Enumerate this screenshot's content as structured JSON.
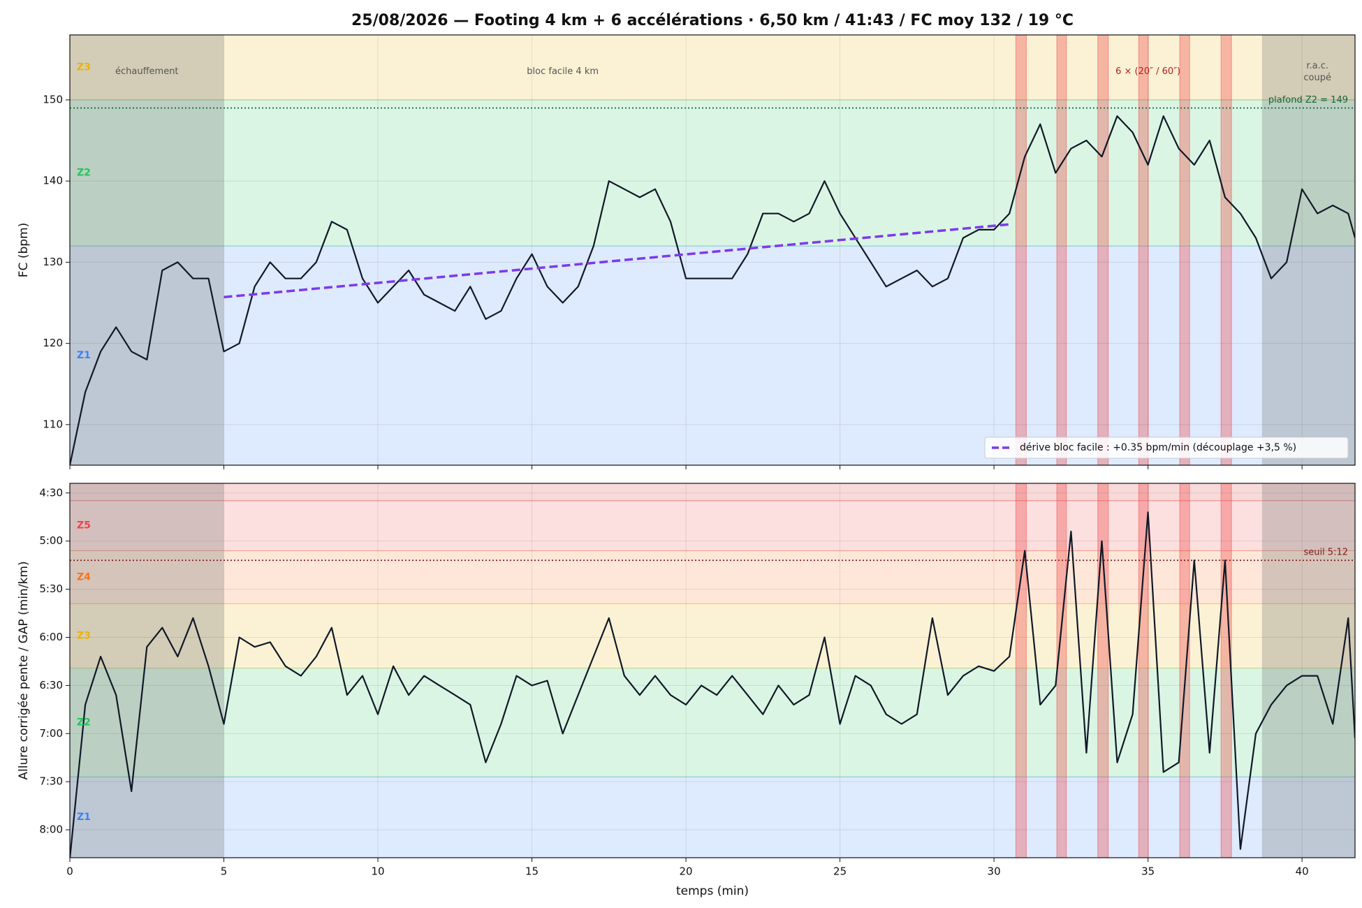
{
  "title": "25/08/2026 — Footing 4 km + 6 accélérations · 6,50 km / 41:43 / FC moy 132 / 19 °C",
  "chart_data": [
    {
      "type": "line",
      "ylabel": "FC (bpm)",
      "xlim": [
        0,
        41.72
      ],
      "xticks": [
        0,
        5,
        10,
        15,
        20,
        25,
        30,
        35,
        40
      ],
      "ylim": [
        105,
        158
      ],
      "yticks": [
        110,
        120,
        130,
        140,
        150
      ],
      "grid": true,
      "zones": [
        {
          "label": "Z1",
          "from": 105,
          "to": 132,
          "color": "#3b82f6"
        },
        {
          "label": "Z2",
          "from": 132,
          "to": 150,
          "color": "#22c55e"
        },
        {
          "label": "Z3",
          "from": 150,
          "to": 158,
          "color": "#eab308"
        }
      ],
      "shaded": [
        [
          0,
          5
        ],
        [
          38.7,
          41.72
        ]
      ],
      "intervals": [
        [
          30.71,
          31.05
        ],
        [
          32.04,
          32.35
        ],
        [
          33.37,
          33.71
        ],
        [
          34.7,
          35.01
        ],
        [
          36.03,
          36.35
        ],
        [
          37.37,
          37.71
        ]
      ],
      "annotations": [
        {
          "text": [
            "échauffement"
          ],
          "x": 2.5,
          "y": 153.5,
          "color": "#555555"
        },
        {
          "text": [
            "bloc facile 4 km"
          ],
          "x": 16,
          "y": 153.5,
          "color": "#555555"
        },
        {
          "text": [
            "6 × (20″ / 60″)"
          ],
          "x": 35,
          "y": 153.5,
          "color": "#b91c1c"
        },
        {
          "text": [
            "r.a.c.",
            "coupé"
          ],
          "x": 40.5,
          "y": 153.5,
          "color": "#555555"
        }
      ],
      "reference": {
        "value": 149,
        "label": "plafond Z2 = 149",
        "color": "#166534"
      },
      "trend": {
        "name": "dérive bloc facile : +0.35 bpm/min (découplage +3,5 %)",
        "x": [
          5,
          30.6
        ],
        "values": [
          125.7,
          134.7
        ],
        "color": "#7c3aed"
      },
      "legend": "lower right",
      "color": "#111827",
      "x": [
        0,
        0.5,
        1,
        1.5,
        2,
        2.5,
        3,
        3.5,
        4,
        4.5,
        5,
        5.5,
        6,
        6.5,
        7,
        7.5,
        8,
        8.5,
        9,
        9.5,
        10,
        10.5,
        11,
        11.5,
        12,
        12.5,
        13,
        13.5,
        14,
        14.5,
        15,
        15.5,
        16,
        16.5,
        17,
        17.5,
        18,
        18.5,
        19,
        19.5,
        20,
        20.5,
        21,
        21.5,
        22,
        22.5,
        23,
        23.5,
        24,
        24.5,
        25,
        25.5,
        26,
        26.5,
        27,
        27.5,
        28,
        28.5,
        29,
        29.5,
        30,
        30.5,
        31,
        31.5,
        32,
        32.5,
        33,
        33.5,
        34,
        34.5,
        35,
        35.5,
        36,
        36.5,
        37,
        37.5,
        38,
        38.5,
        39,
        39.5,
        40,
        40.5,
        41,
        41.5,
        41.72
      ],
      "values": [
        105,
        114,
        119,
        122,
        119,
        118,
        129,
        130,
        128,
        128,
        119,
        120,
        127,
        130,
        128,
        128,
        130,
        135,
        134,
        128,
        125,
        127,
        129,
        126,
        125,
        124,
        127,
        123,
        124,
        128,
        131,
        127,
        125,
        127,
        132,
        140,
        139,
        138,
        139,
        135,
        128,
        128,
        128,
        128,
        131,
        136,
        136,
        135,
        136,
        140,
        136,
        133,
        130,
        127,
        128,
        129,
        127,
        128,
        133,
        134,
        134,
        136,
        143,
        147,
        141,
        144,
        145,
        143,
        148,
        146,
        142,
        148,
        144,
        142,
        145,
        138,
        136,
        133,
        128,
        130,
        139,
        136,
        137,
        136,
        133
      ]
    },
    {
      "type": "line",
      "ylabel": "Allure corrigée pente / GAP (min/km)",
      "xlabel": "temps (min)",
      "xlim": [
        0,
        41.72
      ],
      "xticks": [
        0,
        5,
        10,
        15,
        20,
        25,
        30,
        35,
        40
      ],
      "ylim": [
        4.4,
        8.29
      ],
      "y_inverted": true,
      "yticks": [
        {
          "value": 4.5,
          "label": "4:30"
        },
        {
          "value": 5,
          "label": "5:00"
        },
        {
          "value": 5.5,
          "label": "5:30"
        },
        {
          "value": 6,
          "label": "6:00"
        },
        {
          "value": 6.5,
          "label": "6:30"
        },
        {
          "value": 7,
          "label": "7:00"
        },
        {
          "value": 7.5,
          "label": "7:30"
        },
        {
          "value": 8,
          "label": "8:00"
        }
      ],
      "grid": true,
      "zones": [
        {
          "label": "Z1",
          "from": 7.45,
          "to": 8.29,
          "color": "#3b82f6"
        },
        {
          "label": "Z2",
          "from": 6.32,
          "to": 7.45,
          "color": "#22c55e"
        },
        {
          "label": "Z3",
          "from": 5.65,
          "to": 6.32,
          "color": "#eab308"
        },
        {
          "label": "Z4",
          "from": 5.1,
          "to": 5.65,
          "color": "#f97316"
        },
        {
          "label": "Z5",
          "from": 4.58,
          "to": 5.1,
          "color": "#ef4444"
        },
        {
          "from": 4.4,
          "to": 4.58,
          "color": "#dc2626"
        }
      ],
      "shaded": [
        [
          0,
          5
        ],
        [
          38.7,
          41.72
        ]
      ],
      "intervals": [
        [
          30.71,
          31.05
        ],
        [
          32.04,
          32.35
        ],
        [
          33.37,
          33.71
        ],
        [
          34.7,
          35.01
        ],
        [
          36.03,
          36.35
        ],
        [
          37.37,
          37.71
        ]
      ],
      "reference": {
        "value": 5.2,
        "label": "seuil 5:12",
        "color": "#7f1d1d"
      },
      "color": "#111827",
      "x": [
        0,
        0.5,
        1,
        1.5,
        2,
        2.5,
        3,
        3.5,
        4,
        4.5,
        5,
        5.5,
        6,
        6.5,
        7,
        7.5,
        8,
        8.5,
        9,
        9.5,
        10,
        10.5,
        11,
        11.5,
        12,
        12.5,
        13,
        13.5,
        14,
        14.5,
        15,
        15.5,
        16,
        16.5,
        17,
        17.5,
        18,
        18.5,
        19,
        19.5,
        20,
        20.5,
        21,
        21.5,
        22,
        22.5,
        23,
        23.5,
        24,
        24.5,
        25,
        25.5,
        26,
        26.5,
        27,
        27.5,
        28,
        28.5,
        29,
        29.5,
        30,
        30.5,
        31,
        31.5,
        32,
        32.5,
        33,
        33.5,
        34,
        34.5,
        35,
        35.5,
        36,
        36.5,
        37,
        37.5,
        38,
        38.5,
        39,
        39.5,
        40,
        40.5,
        41,
        41.5,
        41.72
      ],
      "values": [
        8.3,
        6.7,
        6.2,
        6.6,
        7.6,
        6.1,
        5.9,
        6.2,
        5.8,
        6.3,
        6.9,
        6.0,
        6.1,
        6.05,
        6.3,
        6.4,
        6.2,
        5.9,
        6.6,
        6.4,
        6.8,
        6.3,
        6.6,
        6.4,
        6.5,
        6.6,
        6.7,
        7.3,
        6.9,
        6.4,
        6.5,
        6.45,
        7.0,
        6.6,
        6.2,
        5.8,
        6.4,
        6.6,
        6.4,
        6.6,
        6.7,
        6.5,
        6.6,
        6.4,
        6.6,
        6.8,
        6.5,
        6.7,
        6.6,
        6.0,
        6.9,
        6.4,
        6.5,
        6.8,
        6.9,
        6.8,
        5.8,
        6.6,
        6.4,
        6.3,
        6.35,
        6.2,
        5.1,
        6.7,
        6.5,
        4.9,
        7.2,
        5.0,
        7.3,
        6.8,
        4.7,
        7.4,
        7.3,
        5.2,
        7.2,
        5.2,
        8.2,
        7.0,
        6.7,
        6.5,
        6.4,
        6.4,
        6.9,
        5.8,
        7.05
      ]
    }
  ]
}
